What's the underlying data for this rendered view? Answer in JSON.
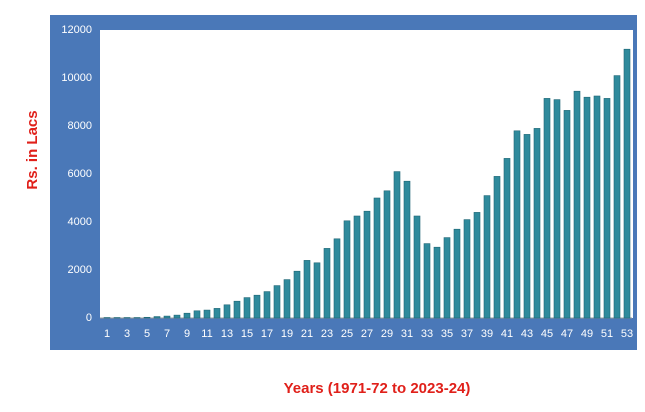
{
  "chart_data": {
    "type": "bar",
    "y_label": "Rs. in Lacs",
    "x_label": "Years (1971-72 to 2023-24)",
    "categories": [
      1,
      null,
      3,
      null,
      5,
      null,
      7,
      null,
      9,
      null,
      11,
      null,
      13,
      null,
      15,
      null,
      17,
      null,
      19,
      null,
      21,
      null,
      23,
      null,
      25,
      null,
      27,
      null,
      29,
      null,
      31,
      null,
      33,
      null,
      35,
      null,
      37,
      null,
      39,
      null,
      41,
      null,
      43,
      null,
      45,
      null,
      47,
      null,
      49,
      null,
      51,
      null,
      53
    ],
    "values": [
      20,
      20,
      20,
      20,
      30,
      60,
      80,
      120,
      200,
      300,
      330,
      400,
      550,
      700,
      850,
      950,
      1100,
      1350,
      1600,
      1950,
      2400,
      2300,
      2900,
      3300,
      4050,
      4250,
      4450,
      5000,
      5300,
      6100,
      5700,
      4250,
      3100,
      2950,
      3350,
      3700,
      4100,
      4400,
      5100,
      5900,
      6650,
      7800,
      7650,
      7900,
      9150,
      9100,
      8650,
      9450,
      9200,
      9250,
      9150,
      10100,
      11200
    ],
    "color": "#2f8a9c",
    "ylim": [
      0,
      12000
    ],
    "yticks": [
      0,
      2000,
      4000,
      6000,
      8000,
      10000,
      12000
    ]
  }
}
